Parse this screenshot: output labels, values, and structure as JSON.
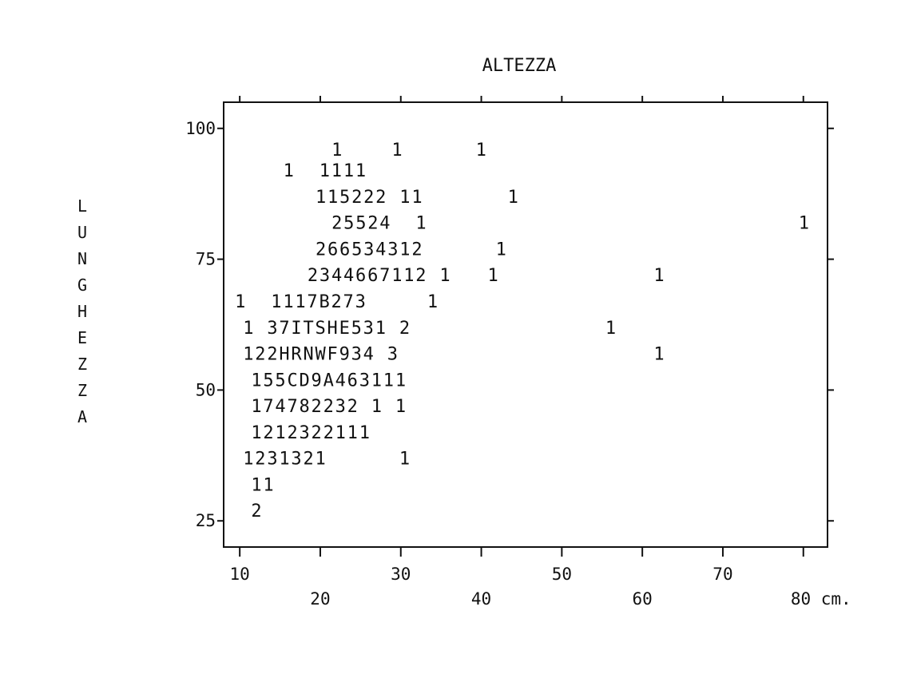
{
  "chart_data": {
    "type": "scatter",
    "title": "ALTEZZA",
    "xlabel": "ALTEZZA",
    "ylabel": "LUNGHEZZA",
    "xlim": [
      8,
      83
    ],
    "ylim": [
      20,
      105
    ],
    "xticks": [
      {
        "v": 10,
        "label": "10"
      },
      {
        "v": 20,
        "label": "20"
      },
      {
        "v": 30,
        "label": "30"
      },
      {
        "v": 40,
        "label": "40"
      },
      {
        "v": 50,
        "label": "50"
      },
      {
        "v": 60,
        "label": "60"
      },
      {
        "v": 70,
        "label": "70"
      },
      {
        "v": 80,
        "label": "80 cm."
      }
    ],
    "yticks": [
      {
        "v": 25,
        "label": "25"
      },
      {
        "v": 50,
        "label": "50"
      },
      {
        "v": 75,
        "label": "75"
      },
      {
        "v": 100,
        "label": "100"
      }
    ],
    "grid": false,
    "note": "Character plot: each symbol is a count of observations (1-9, then letters A-Z for 10+)",
    "rows": [
      {
        "y": 96,
        "x": 22,
        "text": "1    1      1"
      },
      {
        "y": 92,
        "x": 16,
        "text": "1  1111"
      },
      {
        "y": 87,
        "x": 20,
        "text": "115222 11       1"
      },
      {
        "y": 82,
        "x": 22,
        "text": "25524  1"
      },
      {
        "y": 82,
        "x": 80,
        "text": "1"
      },
      {
        "y": 77,
        "x": 20,
        "text": "266534312      1"
      },
      {
        "y": 72,
        "x": 19,
        "text": "2344667112 1   1"
      },
      {
        "y": 72,
        "x": 62,
        "text": "1"
      },
      {
        "y": 67,
        "x": 10,
        "text": "1  1117B273     1"
      },
      {
        "y": 62,
        "x": 11,
        "text": "1 37ITSHE531 2"
      },
      {
        "y": 62,
        "x": 56,
        "text": "1"
      },
      {
        "y": 57,
        "x": 11,
        "text": "122HRNWF934 3"
      },
      {
        "y": 57,
        "x": 62,
        "text": "1"
      },
      {
        "y": 52,
        "x": 12,
        "text": "155CD9A463111"
      },
      {
        "y": 47,
        "x": 12,
        "text": "174782232 1 1"
      },
      {
        "y": 42,
        "x": 12,
        "text": "1212322111"
      },
      {
        "y": 37,
        "x": 11,
        "text": "1231321      1"
      },
      {
        "y": 32,
        "x": 12,
        "text": "11"
      },
      {
        "y": 27,
        "x": 12,
        "text": "2"
      }
    ]
  }
}
